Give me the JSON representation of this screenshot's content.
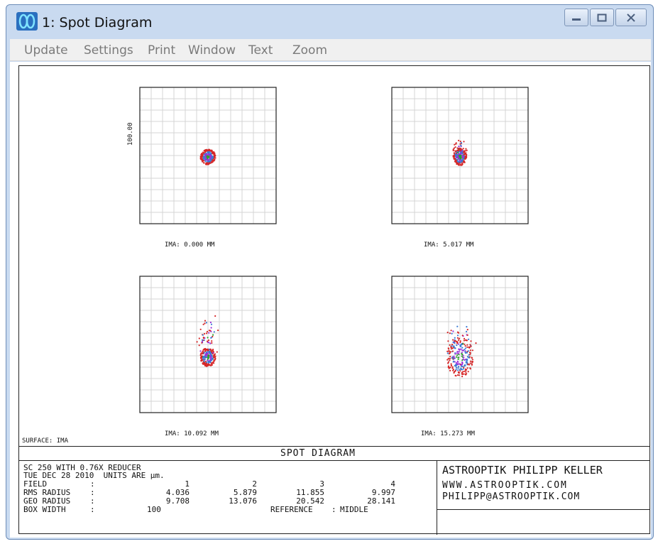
{
  "window": {
    "title": "1: Spot Diagram",
    "controls": {
      "minimize": "minimize-icon",
      "maximize": "maximize-icon",
      "close": "close-icon"
    }
  },
  "menu": [
    "Update",
    "Settings",
    "Print",
    "Window",
    "Text",
    "Zoom"
  ],
  "plot": {
    "scale_label": "100.00",
    "spots": [
      {
        "caption": "IMA: 0.000 MM"
      },
      {
        "caption": "IMA: 5.017 MM"
      },
      {
        "caption": "IMA: 10.092 MM"
      },
      {
        "caption": "IMA: 15.273 MM"
      }
    ],
    "surface_label": "SURFACE: IMA",
    "diagram_title": "SPOT DIAGRAM"
  },
  "info": {
    "line1": "SC 250 WITH 0.76X REDUCER",
    "line2": "TUE DEC 28 2010  UNITS ARE µm.",
    "field_label": "FIELD",
    "field_values": [
      "1",
      "2",
      "3",
      "4"
    ],
    "rms_label": "RMS RADIUS",
    "rms_values": [
      "4.036",
      "5.879",
      "11.855",
      "9.997"
    ],
    "geo_label": "GEO RADIUS",
    "geo_values": [
      "9.708",
      "13.076",
      "20.542",
      "28.141"
    ],
    "box_label": "BOX WIDTH",
    "box_value": "100",
    "reference_label": "REFERENCE",
    "reference_value": "MIDDLE"
  },
  "credit": {
    "name": "ASTROOPTIK PHILIPP KELLER",
    "web": "WWW.ASTROOPTIK.COM",
    "email": "PHILIPP@ASTROOPTIK.COM"
  },
  "colors": {
    "wave1": "#3a7bd5",
    "wave2": "#2aa02a",
    "wave3": "#d62728",
    "wave4": "#9b30d9"
  }
}
